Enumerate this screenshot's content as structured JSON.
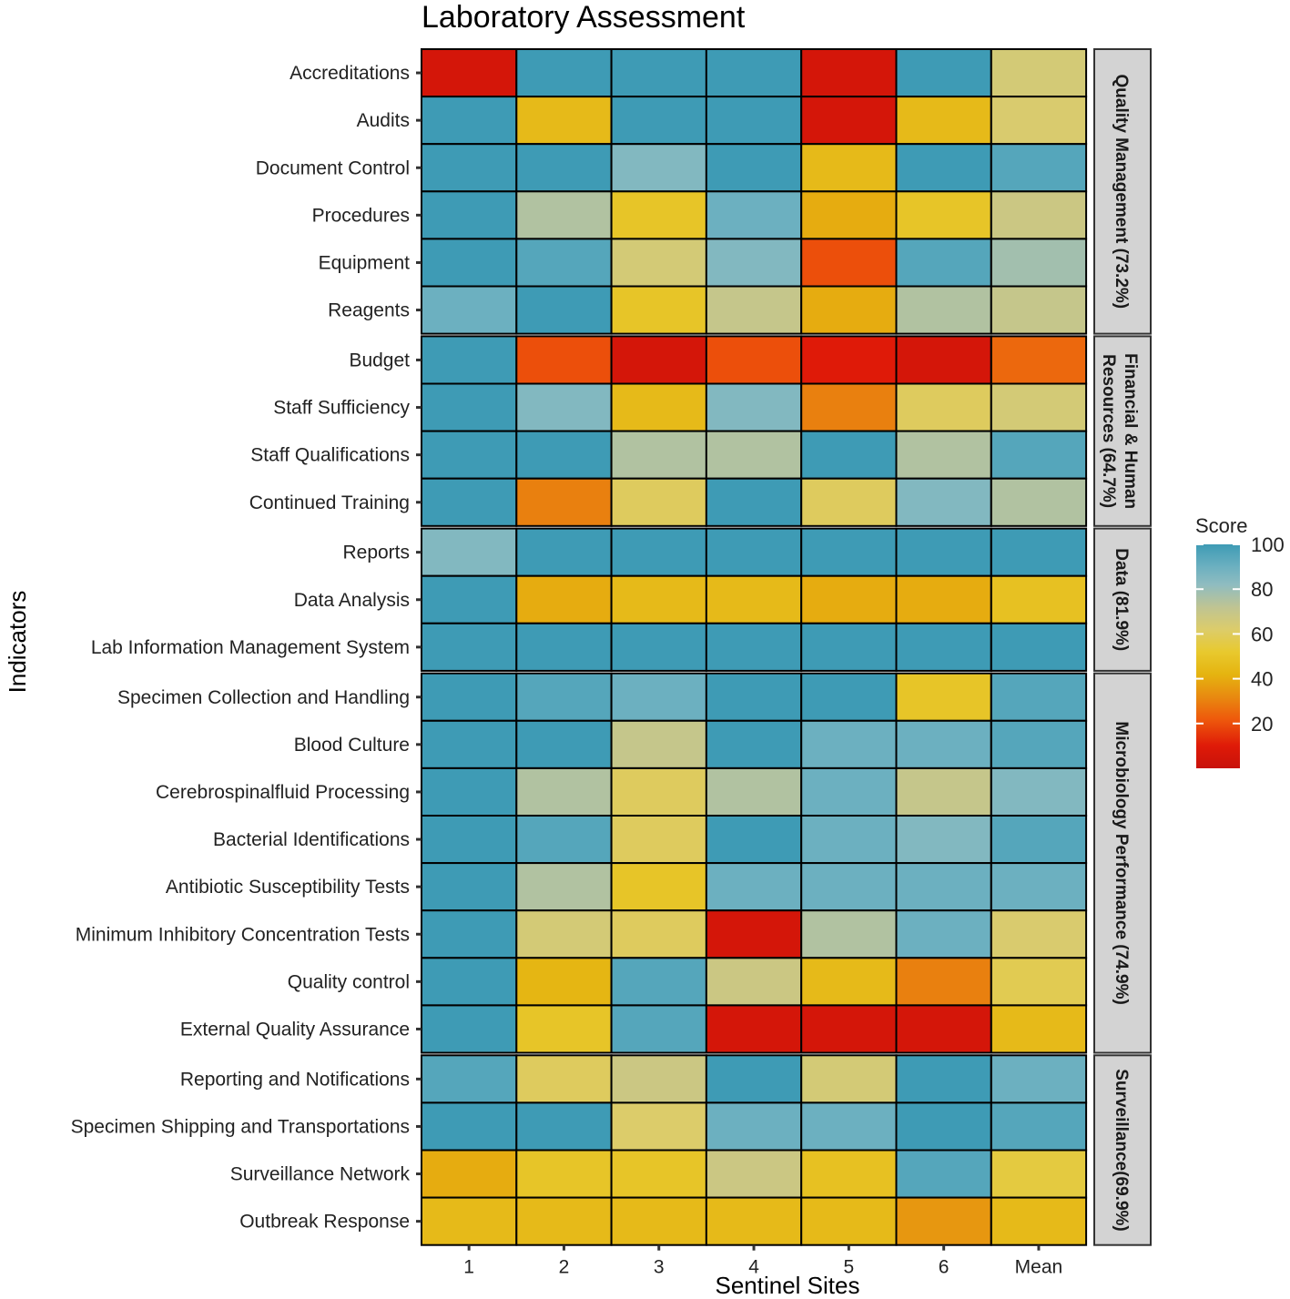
{
  "chart_data": {
    "type": "heatmap",
    "title": "Laboratory Assessment",
    "xlabel": "Sentinel Sites",
    "ylabel": "Indicators",
    "x_categories": [
      "1",
      "2",
      "3",
      "4",
      "5",
      "6",
      "Mean"
    ],
    "y_categories": [
      "Accreditations",
      "Audits",
      "Document Control",
      "Procedures",
      "Equipment",
      "Reagents",
      "Budget",
      "Staff Sufficiency",
      "Staff Qualifications",
      "Continued Training",
      "Reports",
      "Data Analysis",
      "Lab Information Management System",
      "Specimen Collection and Handling",
      "Blood Culture",
      "Cerebrospinalfluid Processing",
      "Bacterial Identifications",
      "Antibiotic Susceptibility Tests",
      "Minimum Inhibitory Concentration Tests",
      "Quality control",
      "External Quality Assurance",
      "Reporting and Notifications",
      "Specimen Shipping and Transportations",
      "Surveillance Network",
      "Outbreak Response"
    ],
    "values": [
      [
        5,
        100,
        100,
        100,
        5,
        100,
        65
      ],
      [
        100,
        45,
        100,
        100,
        5,
        45,
        63
      ],
      [
        100,
        100,
        85,
        100,
        45,
        100,
        95
      ],
      [
        100,
        75,
        50,
        90,
        40,
        50,
        68
      ],
      [
        100,
        95,
        65,
        85,
        20,
        95,
        78
      ],
      [
        90,
        100,
        50,
        70,
        40,
        75,
        70
      ],
      [
        100,
        20,
        5,
        20,
        10,
        5,
        25
      ],
      [
        100,
        85,
        45,
        85,
        30,
        60,
        65
      ],
      [
        100,
        100,
        75,
        75,
        100,
        75,
        95
      ],
      [
        100,
        30,
        60,
        100,
        60,
        85,
        75
      ],
      [
        85,
        100,
        100,
        100,
        100,
        100,
        100
      ],
      [
        100,
        40,
        45,
        45,
        40,
        40,
        48
      ],
      [
        100,
        100,
        100,
        100,
        100,
        100,
        100
      ],
      [
        100,
        95,
        90,
        100,
        100,
        50,
        95
      ],
      [
        100,
        100,
        70,
        100,
        90,
        90,
        95
      ],
      [
        100,
        75,
        60,
        75,
        90,
        70,
        85
      ],
      [
        100,
        95,
        60,
        100,
        90,
        85,
        95
      ],
      [
        100,
        75,
        50,
        90,
        90,
        90,
        90
      ],
      [
        100,
        65,
        60,
        5,
        75,
        90,
        63
      ],
      [
        100,
        43,
        95,
        68,
        45,
        30,
        58
      ],
      [
        100,
        50,
        95,
        5,
        5,
        5,
        45
      ],
      [
        95,
        60,
        68,
        100,
        65,
        100,
        90
      ],
      [
        100,
        100,
        62,
        90,
        90,
        100,
        95
      ],
      [
        40,
        50,
        50,
        68,
        48,
        95,
        55
      ],
      [
        45,
        45,
        45,
        45,
        45,
        35,
        45
      ]
    ],
    "facets": [
      {
        "label": "Quality Management (73.2%)",
        "count": 6
      },
      {
        "label": "Financial & Human Resources (64.7%)",
        "count": 4
      },
      {
        "label": "Data (81.9%)",
        "count": 3
      },
      {
        "label": "Microbiology Performance (74.9%)",
        "count": 8
      },
      {
        "label": "Surveillance(69.9%)",
        "count": 4
      }
    ],
    "legend": {
      "title": "Score",
      "ticks": [
        100,
        80,
        60,
        40,
        20
      ],
      "range": [
        0,
        100
      ],
      "position": "right"
    },
    "colors": {
      "stops": [
        {
          "v": 0,
          "c": "#c8120a"
        },
        {
          "v": 10,
          "c": "#df1a08"
        },
        {
          "v": 22,
          "c": "#ee5a0c"
        },
        {
          "v": 32,
          "c": "#e88a10"
        },
        {
          "v": 42,
          "c": "#e5b410"
        },
        {
          "v": 52,
          "c": "#e8c92e"
        },
        {
          "v": 62,
          "c": "#dccc6a"
        },
        {
          "v": 72,
          "c": "#bfc493"
        },
        {
          "v": 82,
          "c": "#8fbcc0"
        },
        {
          "v": 90,
          "c": "#6cb0c0"
        },
        {
          "v": 100,
          "c": "#3e9bb5"
        }
      ],
      "strip_fill": "#d3d3d3"
    }
  }
}
